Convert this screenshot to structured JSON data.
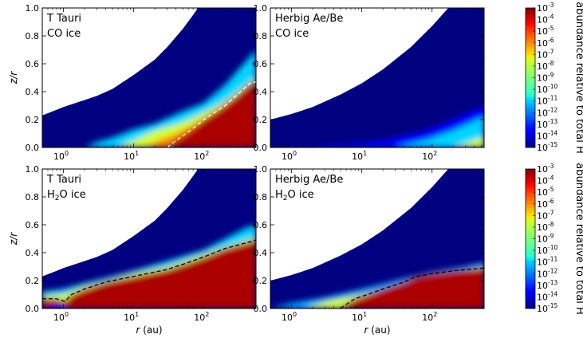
{
  "chart_data": {
    "type": "heatmap",
    "x_axis": {
      "label_var": "r",
      "label_unit": "(au)",
      "scale": "log",
      "xlim": [
        0.5,
        550
      ],
      "major_ticks": [
        1,
        10,
        100
      ],
      "tick_labels": [
        {
          "base": "10",
          "exp": "0"
        },
        {
          "base": "10",
          "exp": "1"
        },
        {
          "base": "10",
          "exp": "2"
        }
      ]
    },
    "y_axis": {
      "label": "z/r",
      "ylim": [
        0.0,
        1.0
      ],
      "ticks": [
        0.0,
        0.2,
        0.4,
        0.6,
        0.8,
        1.0
      ],
      "tick_labels": [
        "0.0",
        "0.2",
        "0.4",
        "0.6",
        "0.8",
        "1.0"
      ]
    },
    "colorbar": {
      "label": "abundance relative to total H",
      "scale": "log",
      "range": [
        -15,
        -3
      ],
      "ticks": [
        {
          "base": "10",
          "exp": "-3"
        },
        {
          "base": "10",
          "exp": "-4"
        },
        {
          "base": "10",
          "exp": "-5"
        },
        {
          "base": "10",
          "exp": "-6"
        },
        {
          "base": "10",
          "exp": "-7"
        },
        {
          "base": "10",
          "exp": "-8"
        },
        {
          "base": "10",
          "exp": "-9"
        },
        {
          "base": "10",
          "exp": "-10"
        },
        {
          "base": "10",
          "exp": "-11"
        },
        {
          "base": "10",
          "exp": "-12"
        },
        {
          "base": "10",
          "exp": "-13"
        },
        {
          "base": "10",
          "exp": "-14"
        },
        {
          "base": "10",
          "exp": "-15"
        }
      ]
    },
    "panels": [
      {
        "id": "tt-co",
        "line1": "T Tauri",
        "species": "CO",
        "sub": "",
        "suffix": " ice",
        "boundary": [
          [
            0.5,
            0.23
          ],
          [
            0.8,
            0.27
          ],
          [
            1,
            0.29
          ],
          [
            2,
            0.34
          ],
          [
            3,
            0.37
          ],
          [
            5,
            0.42
          ],
          [
            10,
            0.52
          ],
          [
            20,
            0.63
          ],
          [
            30,
            0.72
          ],
          [
            50,
            0.85
          ],
          [
            70,
            0.95
          ],
          [
            82,
            1.0
          ]
        ],
        "snowline": [
          [
            30,
            0.0
          ],
          [
            40,
            0.05
          ],
          [
            60,
            0.11
          ],
          [
            100,
            0.2
          ],
          [
            200,
            0.3
          ],
          [
            300,
            0.38
          ],
          [
            450,
            0.46
          ],
          [
            550,
            0.47
          ]
        ],
        "snowline_style": "white-dashed",
        "layers": [
          {
            "name": "cyan-band",
            "log_abundance": -11,
            "points": [
              [
                2,
                0.0
              ],
              [
                3,
                0.04
              ],
              [
                5,
                0.07
              ],
              [
                10,
                0.13
              ],
              [
                20,
                0.17
              ],
              [
                50,
                0.26
              ],
              [
                100,
                0.32
              ],
              [
                200,
                0.45
              ],
              [
                400,
                0.62
              ],
              [
                550,
                0.7
              ],
              [
                550,
                0.0
              ]
            ]
          },
          {
            "name": "yellow-band",
            "log_abundance": -8,
            "points": [
              [
                6,
                0.0
              ],
              [
                10,
                0.05
              ],
              [
                20,
                0.12
              ],
              [
                50,
                0.18
              ],
              [
                100,
                0.25
              ],
              [
                200,
                0.33
              ],
              [
                400,
                0.45
              ],
              [
                550,
                0.5
              ],
              [
                550,
                0.0
              ]
            ]
          },
          {
            "name": "orange-band",
            "log_abundance": -6,
            "points": [
              [
                15,
                0.0
              ],
              [
                20,
                0.04
              ],
              [
                40,
                0.1
              ],
              [
                80,
                0.18
              ],
              [
                150,
                0.27
              ],
              [
                300,
                0.38
              ],
              [
                550,
                0.48
              ],
              [
                550,
                0.0
              ]
            ]
          },
          {
            "name": "red-core",
            "log_abundance": -3.5,
            "points": [
              [
                30,
                0.0
              ],
              [
                40,
                0.05
              ],
              [
                60,
                0.11
              ],
              [
                100,
                0.2
              ],
              [
                200,
                0.3
              ],
              [
                300,
                0.38
              ],
              [
                450,
                0.46
              ],
              [
                550,
                0.47
              ],
              [
                550,
                0.0
              ]
            ]
          }
        ]
      },
      {
        "id": "hae-co",
        "line1": "Herbig Ae/Be",
        "species": "CO",
        "sub": "",
        "suffix": " ice",
        "boundary": [
          [
            0.5,
            0.2
          ],
          [
            1,
            0.24
          ],
          [
            2,
            0.29
          ],
          [
            5,
            0.38
          ],
          [
            10,
            0.46
          ],
          [
            20,
            0.56
          ],
          [
            50,
            0.72
          ],
          [
            100,
            0.87
          ],
          [
            170,
            1.0
          ]
        ],
        "snowline": [],
        "snowline_style": "none",
        "layers": [
          {
            "name": "faint-blue",
            "log_abundance": -13.5,
            "points": [
              [
                1,
                0.0
              ],
              [
                5,
                0.02
              ],
              [
                20,
                0.05
              ],
              [
                80,
                0.12
              ],
              [
                200,
                0.2
              ],
              [
                550,
                0.3
              ],
              [
                550,
                0.0
              ]
            ]
          },
          {
            "name": "cyan-band",
            "log_abundance": -11,
            "points": [
              [
                30,
                0.0
              ],
              [
                80,
                0.05
              ],
              [
                200,
                0.12
              ],
              [
                550,
                0.22
              ],
              [
                550,
                0.0
              ]
            ]
          },
          {
            "name": "yellow-band",
            "log_abundance": -8,
            "points": [
              [
                200,
                0.0
              ],
              [
                350,
                0.04
              ],
              [
                550,
                0.08
              ],
              [
                550,
                0.0
              ]
            ]
          }
        ]
      },
      {
        "id": "tt-h2o",
        "line1": "T Tauri",
        "species": "H",
        "sub": "2",
        "suffix": "O ice",
        "boundary": [
          [
            0.5,
            0.23
          ],
          [
            0.8,
            0.27
          ],
          [
            1,
            0.29
          ],
          [
            2,
            0.34
          ],
          [
            3,
            0.37
          ],
          [
            5,
            0.42
          ],
          [
            10,
            0.52
          ],
          [
            20,
            0.63
          ],
          [
            30,
            0.72
          ],
          [
            50,
            0.85
          ],
          [
            70,
            0.95
          ],
          [
            82,
            1.0
          ]
        ],
        "snowline": [
          [
            0.5,
            0.07
          ],
          [
            0.8,
            0.07
          ],
          [
            1.05,
            0.05
          ],
          [
            1.3,
            0.1
          ],
          [
            2,
            0.14
          ],
          [
            4,
            0.19
          ],
          [
            10,
            0.23
          ],
          [
            30,
            0.28
          ],
          [
            60,
            0.33
          ],
          [
            100,
            0.37
          ],
          [
            200,
            0.43
          ],
          [
            550,
            0.49
          ]
        ],
        "snowline_style": "black-dashed",
        "layers": [
          {
            "name": "cyan-band",
            "log_abundance": -11,
            "points": [
              [
                0.5,
                0.12
              ],
              [
                1,
                0.14
              ],
              [
                2,
                0.18
              ],
              [
                5,
                0.23
              ],
              [
                10,
                0.27
              ],
              [
                30,
                0.34
              ],
              [
                100,
                0.42
              ],
              [
                200,
                0.5
              ],
              [
                400,
                0.58
              ],
              [
                550,
                0.6
              ],
              [
                550,
                0.0
              ],
              [
                0.5,
                0.0
              ]
            ]
          },
          {
            "name": "yellow-band",
            "log_abundance": -8,
            "points": [
              [
                0.5,
                0.09
              ],
              [
                1,
                0.1
              ],
              [
                2,
                0.16
              ],
              [
                5,
                0.21
              ],
              [
                10,
                0.25
              ],
              [
                30,
                0.3
              ],
              [
                100,
                0.39
              ],
              [
                300,
                0.47
              ],
              [
                550,
                0.51
              ],
              [
                550,
                0.0
              ],
              [
                0.5,
                0.0
              ]
            ]
          },
          {
            "name": "red-core",
            "log_abundance": -3.5,
            "points": [
              [
                0.5,
                0.07
              ],
              [
                0.8,
                0.07
              ],
              [
                1.05,
                0.05
              ],
              [
                1.3,
                0.1
              ],
              [
                2,
                0.14
              ],
              [
                4,
                0.19
              ],
              [
                10,
                0.23
              ],
              [
                30,
                0.28
              ],
              [
                60,
                0.33
              ],
              [
                100,
                0.37
              ],
              [
                200,
                0.43
              ],
              [
                550,
                0.49
              ],
              [
                550,
                0.0
              ],
              [
                0.5,
                0.0
              ]
            ]
          },
          {
            "name": "inner-gap",
            "log_abundance": -13.5,
            "points": [
              [
                0.55,
                0.0
              ],
              [
                0.8,
                0.03
              ],
              [
                1.0,
                0.02
              ],
              [
                1.15,
                0.0
              ]
            ]
          }
        ]
      },
      {
        "id": "hae-h2o",
        "line1": "Herbig Ae/Be",
        "species": "H",
        "sub": "2",
        "suffix": "O ice",
        "boundary": [
          [
            0.5,
            0.2
          ],
          [
            1,
            0.24
          ],
          [
            2,
            0.29
          ],
          [
            5,
            0.38
          ],
          [
            10,
            0.46
          ],
          [
            20,
            0.56
          ],
          [
            50,
            0.72
          ],
          [
            100,
            0.87
          ],
          [
            170,
            1.0
          ]
        ],
        "snowline": [
          [
            5,
            0.0
          ],
          [
            6,
            0.03
          ],
          [
            8,
            0.07
          ],
          [
            12,
            0.1
          ],
          [
            20,
            0.14
          ],
          [
            40,
            0.19
          ],
          [
            60,
            0.23
          ],
          [
            100,
            0.25
          ],
          [
            200,
            0.27
          ],
          [
            550,
            0.29
          ]
        ],
        "snowline_style": "black-dashed",
        "layers": [
          {
            "name": "cyan-band",
            "log_abundance": -11.5,
            "points": [
              [
                0.5,
                0.0
              ],
              [
                1,
                0.04
              ],
              [
                3,
                0.08
              ],
              [
                10,
                0.14
              ],
              [
                30,
                0.2
              ],
              [
                100,
                0.26
              ],
              [
                300,
                0.3
              ],
              [
                550,
                0.33
              ],
              [
                550,
                0.0
              ]
            ]
          },
          {
            "name": "yellow-band",
            "log_abundance": -8,
            "points": [
              [
                1.5,
                0.0
              ],
              [
                3,
                0.05
              ],
              [
                10,
                0.1
              ],
              [
                30,
                0.16
              ],
              [
                100,
                0.25
              ],
              [
                300,
                0.28
              ],
              [
                550,
                0.3
              ],
              [
                550,
                0.0
              ]
            ]
          },
          {
            "name": "red-core",
            "log_abundance": -3.5,
            "points": [
              [
                5,
                0.0
              ],
              [
                6,
                0.03
              ],
              [
                8,
                0.07
              ],
              [
                12,
                0.1
              ],
              [
                20,
                0.14
              ],
              [
                40,
                0.19
              ],
              [
                60,
                0.23
              ],
              [
                100,
                0.25
              ],
              [
                200,
                0.27
              ],
              [
                550,
                0.29
              ],
              [
                550,
                0.0
              ]
            ]
          }
        ]
      }
    ]
  }
}
